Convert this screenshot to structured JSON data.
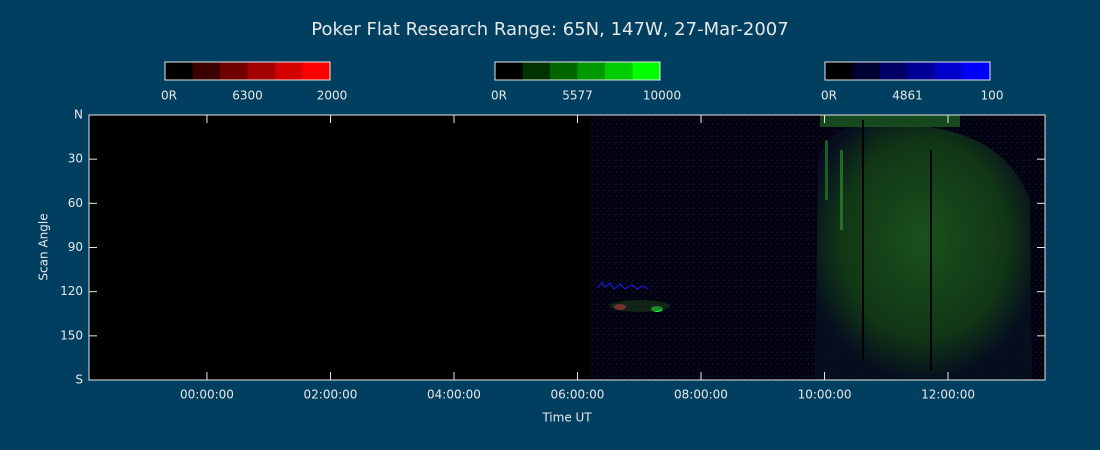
{
  "chart_data": {
    "type": "keogram",
    "title": "Poker Flat Research Range: 65N, 147W, 27-Mar-2007",
    "xlabel": "Time UT",
    "ylabel": "Scan Angle",
    "xlim": [
      -1.91,
      13.57
    ],
    "xticks": [
      {
        "value": 0,
        "label": "00:00:00"
      },
      {
        "value": 2,
        "label": "02:00:00"
      },
      {
        "value": 4,
        "label": "04:00:00"
      },
      {
        "value": 6,
        "label": "06:00:00"
      },
      {
        "value": 8,
        "label": "08:00:00"
      },
      {
        "value": 10,
        "label": "10:00:00"
      },
      {
        "value": 12,
        "label": "12:00:00"
      }
    ],
    "ylim": [
      0,
      180
    ],
    "yticks": [
      {
        "value": 0,
        "label": "N"
      },
      30,
      60,
      90,
      120,
      150,
      {
        "value": 180,
        "label": "S"
      }
    ],
    "colorbars": [
      {
        "min_label": "0R",
        "name": "6300",
        "max_label": "2000",
        "colors": [
          "#000000",
          "#3c0000",
          "#700000",
          "#a30000",
          "#d40000",
          "#ff0000"
        ]
      },
      {
        "min_label": "0R",
        "name": "5577",
        "max_label": "10000",
        "colors": [
          "#000000",
          "#003300",
          "#006600",
          "#009900",
          "#00cc00",
          "#00ff00"
        ]
      },
      {
        "min_label": "0R",
        "name": "4861",
        "max_label": "100",
        "colors": [
          "#000000",
          "#000033",
          "#000066",
          "#000099",
          "#0000cc",
          "#0000ff"
        ]
      }
    ]
  }
}
